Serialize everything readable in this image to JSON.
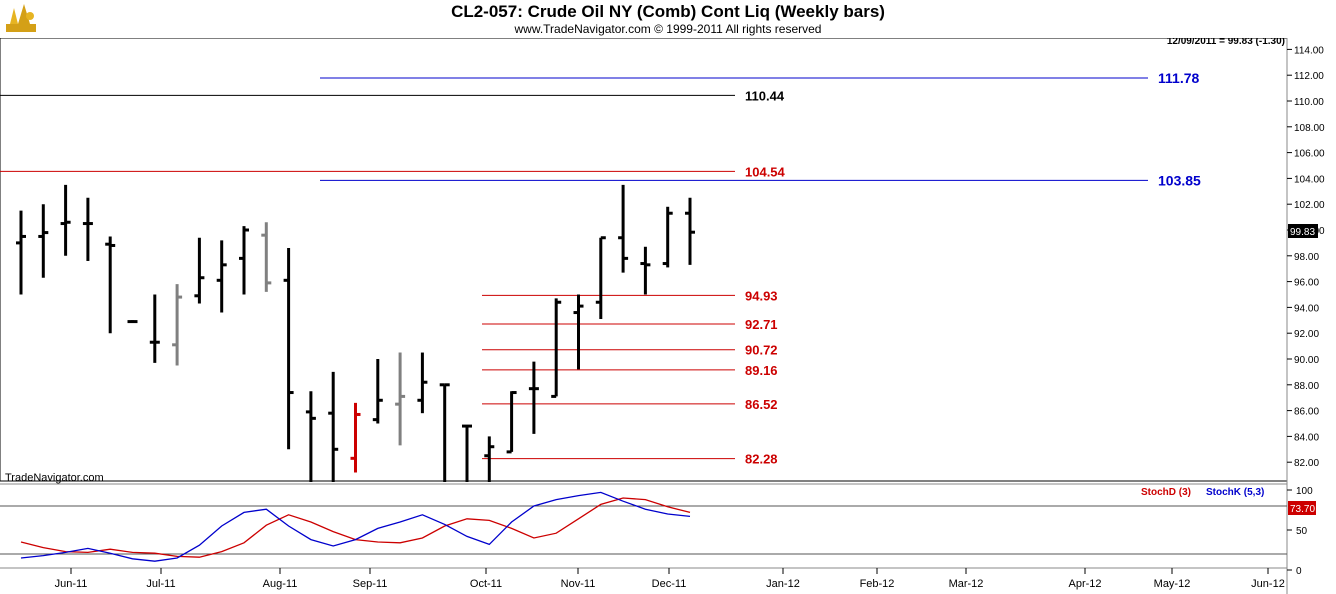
{
  "header": {
    "title": "CL2-057:  Crude Oil NY (Comb) Cont Liq  (Weekly bars)",
    "subtitle": "www.TradeNavigator.com © 1999-2011 All rights reserved",
    "last_price_info": "12/09/2011 = 99.83 (-1.30)",
    "watermark": "TradeNavigator.com"
  },
  "chart_data": [
    {
      "type": "ohlc",
      "title": "CL2-057:  Crude Oil NY (Comb) Cont Liq  (Weekly bars)",
      "ylim": [
        80,
        115
      ],
      "y_ticks": [
        "82.00",
        "84.00",
        "86.00",
        "88.00",
        "90.00",
        "92.00",
        "94.00",
        "96.00",
        "98.00",
        "100.00",
        "102.00",
        "104.00",
        "106.00",
        "108.00",
        "110.00",
        "112.00",
        "114.00"
      ],
      "x_ticks": [
        "Jun-11",
        "Jul-11",
        "Aug-11",
        "Sep-11",
        "Oct-11",
        "Nov-11",
        "Dec-11",
        "Jan-12",
        "Feb-12",
        "Mar-12",
        "Apr-12",
        "May-12",
        "Jun-12"
      ],
      "last_value_label": "99.83",
      "bars": [
        {
          "open": 99.0,
          "high": 101.5,
          "low": 95.0,
          "close": 99.5,
          "color": "#000000"
        },
        {
          "open": 99.5,
          "high": 102.0,
          "low": 96.3,
          "close": 99.8,
          "color": "#000000"
        },
        {
          "open": 100.5,
          "high": 103.5,
          "low": 98.0,
          "close": 100.6,
          "color": "#000000"
        },
        {
          "open": 100.5,
          "high": 102.5,
          "low": 97.6,
          "close": 100.5,
          "color": "#000000"
        },
        {
          "open": 98.9,
          "high": 99.5,
          "low": 92.0,
          "close": 98.8,
          "color": "#000000"
        },
        {
          "open": 92.9,
          "high": 93.0,
          "low": 92.8,
          "close": 92.9,
          "color": "#000000"
        },
        {
          "open": 91.3,
          "high": 95.0,
          "low": 89.7,
          "close": 91.3,
          "color": "#000000"
        },
        {
          "open": 91.1,
          "high": 95.8,
          "low": 89.5,
          "close": 94.8,
          "color": "#808080"
        },
        {
          "open": 94.9,
          "high": 99.4,
          "low": 94.3,
          "close": 96.3,
          "color": "#000000"
        },
        {
          "open": 96.1,
          "high": 99.2,
          "low": 93.6,
          "close": 97.3,
          "color": "#000000"
        },
        {
          "open": 97.8,
          "high": 100.3,
          "low": 95.0,
          "close": 100.0,
          "color": "#000000"
        },
        {
          "open": 99.6,
          "high": 100.6,
          "low": 95.2,
          "close": 95.9,
          "color": "#808080"
        },
        {
          "open": 96.1,
          "high": 98.6,
          "low": 83.0,
          "close": 87.4,
          "color": "#000000"
        },
        {
          "open": 85.9,
          "high": 87.5,
          "low": 80.0,
          "close": 85.4,
          "color": "#000000"
        },
        {
          "open": 85.8,
          "high": 89.0,
          "low": 80.0,
          "close": 83.0,
          "color": "#000000"
        },
        {
          "open": 82.3,
          "high": 86.6,
          "low": 81.2,
          "close": 85.7,
          "color": "#cc0000"
        },
        {
          "open": 85.3,
          "high": 90.0,
          "low": 85.0,
          "close": 86.8,
          "color": "#000000"
        },
        {
          "open": 86.5,
          "high": 90.5,
          "low": 83.3,
          "close": 87.1,
          "color": "#808080"
        },
        {
          "open": 86.8,
          "high": 90.5,
          "low": 85.8,
          "close": 88.2,
          "color": "#000000"
        },
        {
          "open": 88.0,
          "high": 88.0,
          "low": 80.0,
          "close": 88.0,
          "color": "#000000"
        },
        {
          "open": 84.8,
          "high": 84.8,
          "low": 80.0,
          "close": 84.8,
          "color": "#000000"
        },
        {
          "open": 82.5,
          "high": 84.0,
          "low": 80.0,
          "close": 83.2,
          "color": "#000000"
        },
        {
          "open": 82.8,
          "high": 87.5,
          "low": 82.8,
          "close": 87.4,
          "color": "#000000"
        },
        {
          "open": 87.7,
          "high": 89.8,
          "low": 84.2,
          "close": 87.7,
          "color": "#000000"
        },
        {
          "open": 87.1,
          "high": 94.7,
          "low": 87.1,
          "close": 94.4,
          "color": "#000000"
        },
        {
          "open": 93.6,
          "high": 95.0,
          "low": 89.2,
          "close": 94.1,
          "color": "#000000"
        },
        {
          "open": 94.4,
          "high": 99.4,
          "low": 93.1,
          "close": 99.4,
          "color": "#000000"
        },
        {
          "open": 99.4,
          "high": 103.5,
          "low": 96.7,
          "close": 97.8,
          "color": "#000000"
        },
        {
          "open": 97.4,
          "high": 98.7,
          "low": 95.0,
          "close": 97.3,
          "color": "#000000"
        },
        {
          "open": 97.4,
          "high": 101.8,
          "low": 97.1,
          "close": 101.3,
          "color": "#000000"
        },
        {
          "open": 101.3,
          "high": 102.5,
          "low": 97.3,
          "close": 99.83,
          "color": "#000000"
        }
      ],
      "levels": [
        {
          "label": "111.78",
          "value": 111.78,
          "color": "#0000cc",
          "x_start": 320,
          "x_end": 1148,
          "label_side": "right"
        },
        {
          "label": "110.44",
          "value": 110.44,
          "color": "#000000",
          "x_start": 0,
          "x_end": 735,
          "label_side": "mid"
        },
        {
          "label": "104.54",
          "value": 104.54,
          "color": "#cc0000",
          "x_start": 0,
          "x_end": 735,
          "label_side": "mid"
        },
        {
          "label": "103.85",
          "value": 103.85,
          "color": "#0000cc",
          "x_start": 320,
          "x_end": 1148,
          "label_side": "right"
        },
        {
          "label": "94.93",
          "value": 94.93,
          "color": "#cc0000",
          "x_start": 482,
          "x_end": 735,
          "label_side": "mid"
        },
        {
          "label": "92.71",
          "value": 92.71,
          "color": "#cc0000",
          "x_start": 482,
          "x_end": 735,
          "label_side": "mid"
        },
        {
          "label": "90.72",
          "value": 90.72,
          "color": "#cc0000",
          "x_start": 482,
          "x_end": 735,
          "label_side": "mid"
        },
        {
          "label": "89.16",
          "value": 89.16,
          "color": "#cc0000",
          "x_start": 482,
          "x_end": 735,
          "label_side": "mid"
        },
        {
          "label": "86.52",
          "value": 86.52,
          "color": "#cc0000",
          "x_start": 482,
          "x_end": 735,
          "label_side": "mid"
        },
        {
          "label": "82.28",
          "value": 82.28,
          "color": "#cc0000",
          "x_start": 482,
          "x_end": 735,
          "label_side": "mid"
        }
      ]
    },
    {
      "type": "line",
      "ylim": [
        0,
        100
      ],
      "y_ticks": [
        "0",
        "50",
        "100"
      ],
      "ref_lines": [
        80,
        20
      ],
      "last_value_label": "73.70",
      "series": [
        {
          "name": "StochD (3)",
          "color": "#cc0000",
          "values": [
            35,
            28,
            23,
            22,
            26,
            22,
            21,
            17,
            16,
            23,
            34,
            56,
            69,
            60,
            48,
            38,
            35,
            34,
            40,
            55,
            64,
            62,
            52,
            40,
            46,
            64,
            82,
            90,
            88,
            79,
            72
          ]
        },
        {
          "name": "StochK (5,3)",
          "color": "#0000cc",
          "values": [
            15,
            18,
            22,
            27,
            21,
            14,
            11,
            15,
            31,
            55,
            72,
            76,
            55,
            38,
            30,
            38,
            52,
            60,
            69,
            57,
            42,
            32,
            60,
            80,
            88,
            93,
            97,
            86,
            76,
            70,
            67
          ]
        }
      ]
    }
  ],
  "colors": {
    "background": "#ffffff",
    "axis_label_bg": "#000000",
    "stoch_label_bg": "#cc0000",
    "frame": "#888888"
  }
}
